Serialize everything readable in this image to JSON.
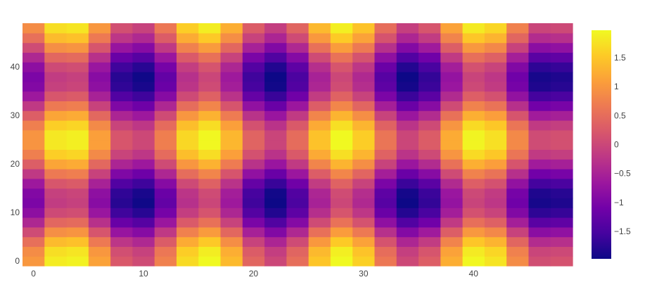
{
  "chart_data": {
    "type": "heatmap",
    "title": "",
    "xlabel": "",
    "ylabel": "",
    "z_formula": "sin(2*pi*x/12.5) + cos(2*pi*y/25), sampled every 2 units",
    "x_cells": [
      0,
      2,
      4,
      6,
      8,
      10,
      12,
      14,
      16,
      18,
      20,
      22,
      24,
      26,
      28,
      30,
      32,
      34,
      36,
      38,
      40,
      42,
      44,
      46,
      48
    ],
    "y_cells": [
      0,
      2,
      4,
      6,
      8,
      10,
      12,
      14,
      16,
      18,
      20,
      22,
      24,
      26,
      28,
      30,
      32,
      34,
      36,
      38,
      40,
      42,
      44,
      46,
      48
    ],
    "xlim": [
      -1,
      49
    ],
    "ylim": [
      -1,
      49
    ],
    "x_ticks": [
      0,
      10,
      20,
      30,
      40
    ],
    "x_tick_labels": [
      "0",
      "10",
      "20",
      "30",
      "40"
    ],
    "y_ticks": [
      0,
      10,
      20,
      30,
      40
    ],
    "y_tick_labels": [
      "0",
      "10",
      "20",
      "30",
      "40"
    ],
    "zlim": [
      -1.97,
      1.97
    ],
    "colorscale": "plasma",
    "colorscale_stops": [
      "#0d0887",
      "#46039f",
      "#7201a8",
      "#9c179e",
      "#bd3786",
      "#d8576b",
      "#ed7953",
      "#fb9f3a",
      "#fdca26",
      "#f0f921"
    ],
    "colorbar_ticks": [
      -1.5,
      -1,
      -0.5,
      0,
      0.5,
      1,
      1.5
    ],
    "colorbar_tick_labels": [
      "−1.5",
      "−1",
      "−0.5",
      "0",
      "0.5",
      "1",
      "1.5"
    ],
    "grid": false,
    "legend": "colorbar-right"
  }
}
